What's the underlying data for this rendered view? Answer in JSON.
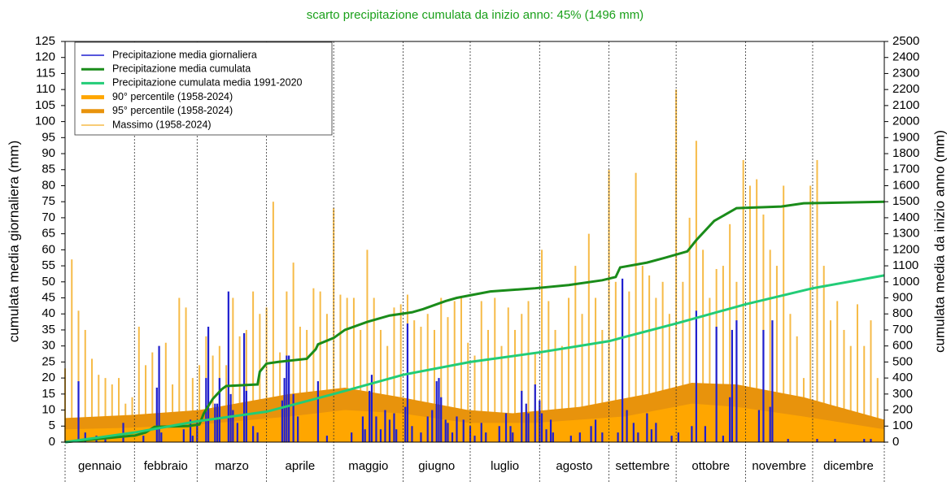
{
  "chart_data": {
    "type": "combo",
    "title": "scarto precipitazione cumulata da inizio anno: 45% (1496 mm)",
    "ylabel": "cumulata media giornaliera (mm)",
    "y2label": "cumulata media da inizio anno (mm)",
    "categories": [
      "gennaio",
      "febbraio",
      "marzo",
      "aprile",
      "maggio",
      "giugno",
      "luglio",
      "agosto",
      "settembre",
      "ottobre",
      "novembre",
      "dicembre"
    ],
    "xlim": [
      0,
      366
    ],
    "xticks": [
      0,
      31,
      59,
      90,
      120,
      151,
      181,
      212,
      243,
      273,
      304,
      334,
      366
    ],
    "ylim": [
      0,
      125
    ],
    "yticks": [
      0,
      5,
      10,
      15,
      20,
      25,
      30,
      35,
      40,
      45,
      50,
      55,
      60,
      65,
      70,
      75,
      80,
      85,
      90,
      95,
      100,
      105,
      110,
      115,
      120,
      125
    ],
    "y2lim": [
      0,
      2500
    ],
    "y2ticks": [
      0,
      100,
      200,
      300,
      400,
      500,
      600,
      700,
      800,
      900,
      1000,
      1100,
      1200,
      1300,
      1400,
      1500,
      1600,
      1700,
      1800,
      1900,
      2000,
      2100,
      2200,
      2300,
      2400,
      2500
    ],
    "legend": "upper left",
    "series": [
      {
        "name": "Precipitazione media giornaliera",
        "type": "bar",
        "color": "#1f1fd0",
        "axis": "y",
        "x": [
          6,
          9,
          14,
          18,
          26,
          35,
          41,
          42,
          43,
          53,
          56,
          57,
          59,
          63,
          64,
          67,
          68,
          69,
          73,
          74,
          75,
          77,
          80,
          81,
          84,
          86,
          97,
          98,
          99,
          100,
          102,
          104,
          113,
          117,
          128,
          133,
          134,
          136,
          137,
          139,
          141,
          143,
          145,
          147,
          148,
          152,
          153,
          155,
          159,
          162,
          164,
          166,
          167,
          168,
          170,
          171,
          173,
          175,
          178,
          181,
          183,
          186,
          188,
          194,
          197,
          199,
          200,
          204,
          206,
          207,
          210,
          212,
          213,
          215,
          217,
          218,
          226,
          230,
          235,
          237,
          240,
          247,
          249,
          251,
          254,
          256,
          260,
          262,
          264,
          271,
          274,
          280,
          282,
          286,
          291,
          294,
          297,
          298,
          300,
          310,
          312,
          315,
          316,
          323,
          336,
          344,
          357,
          360
        ],
        "values": [
          19,
          3,
          2,
          1,
          6,
          2,
          17,
          30,
          3,
          4,
          7,
          2,
          6,
          20,
          36,
          12,
          12,
          20,
          47,
          15,
          10,
          6,
          34,
          16,
          5,
          3,
          13,
          20,
          27,
          27,
          15,
          8,
          19,
          2,
          3,
          8,
          4,
          16,
          21,
          8,
          4,
          10,
          7,
          9,
          4,
          11,
          37,
          5,
          3,
          8,
          10,
          19,
          20,
          14,
          7,
          6,
          3,
          8,
          7,
          5,
          2,
          6,
          3,
          5,
          9,
          5,
          3,
          16,
          12,
          9,
          18,
          13,
          9,
          4,
          7,
          3,
          2,
          3,
          5,
          7,
          3,
          3,
          51,
          10,
          6,
          3,
          9,
          4,
          6,
          2,
          3,
          5,
          41,
          5,
          36,
          2,
          14,
          35,
          38,
          10,
          35,
          11,
          38,
          1,
          1,
          1,
          1,
          1
        ]
      },
      {
        "name": "Precipitazione media cumulata",
        "type": "line",
        "color": "#1a8c1a",
        "axis": "y2",
        "x": [
          0,
          30,
          31,
          36,
          40,
          55,
          60,
          62,
          66,
          70,
          72,
          86,
          87,
          90,
          95,
          108,
          112,
          113,
          120,
          125,
          135,
          145,
          155,
          160,
          170,
          175,
          190,
          210,
          225,
          240,
          246,
          248,
          260,
          268,
          278,
          282,
          290,
          300,
          320,
          330,
          366
        ],
        "values": [
          0,
          40,
          40,
          60,
          95,
          100,
          110,
          180,
          270,
          330,
          350,
          360,
          440,
          490,
          500,
          520,
          580,
          610,
          650,
          700,
          750,
          790,
          810,
          830,
          880,
          900,
          940,
          960,
          980,
          1010,
          1030,
          1090,
          1120,
          1150,
          1190,
          1260,
          1380,
          1460,
          1470,
          1490,
          1500
        ]
      },
      {
        "name": "Precipitazione cumulata media 1991-2020",
        "type": "line",
        "color": "#22cc77",
        "axis": "y2",
        "x": [
          0,
          31,
          59,
          90,
          120,
          151,
          181,
          212,
          243,
          273,
          304,
          334,
          366
        ],
        "values": [
          0,
          60,
          130,
          190,
          300,
          420,
          500,
          560,
          630,
          740,
          860,
          960,
          1040
        ]
      },
      {
        "name": "90° percentile (1958-2024)",
        "type": "area",
        "color": "#ffa600",
        "axis": "y",
        "x": [
          0,
          30,
          60,
          100,
          125,
          150,
          180,
          210,
          250,
          280,
          300,
          330,
          366
        ],
        "values": [
          4,
          4.5,
          5.5,
          8,
          10,
          9,
          6,
          6,
          8,
          12,
          11,
          8,
          4
        ]
      },
      {
        "name": "95° percentile (1958-2024)",
        "type": "area",
        "color": "#e8930c",
        "axis": "y",
        "x": [
          0,
          30,
          60,
          100,
          125,
          150,
          180,
          200,
          230,
          260,
          280,
          300,
          330,
          366
        ],
        "values": [
          7.5,
          8.5,
          10,
          15,
          17,
          14,
          10,
          9,
          11,
          15,
          18.5,
          18,
          14,
          7
        ]
      },
      {
        "name": "Massimo (1958-2024)",
        "type": "bar",
        "color": "#f6bb48",
        "axis": "y",
        "x": [
          0,
          3,
          6,
          9,
          12,
          15,
          18,
          21,
          24,
          27,
          30,
          33,
          36,
          39,
          42,
          45,
          48,
          51,
          54,
          57,
          60,
          63,
          66,
          69,
          72,
          75,
          78,
          81,
          84,
          87,
          90,
          93,
          96,
          99,
          102,
          105,
          108,
          111,
          114,
          117,
          120,
          123,
          126,
          129,
          132,
          135,
          138,
          141,
          144,
          147,
          150,
          153,
          156,
          159,
          162,
          165,
          168,
          171,
          174,
          177,
          180,
          183,
          186,
          189,
          192,
          195,
          198,
          201,
          204,
          207,
          210,
          213,
          216,
          219,
          222,
          225,
          228,
          231,
          234,
          237,
          240,
          243,
          246,
          249,
          252,
          255,
          258,
          261,
          264,
          267,
          270,
          273,
          276,
          279,
          282,
          285,
          288,
          291,
          294,
          297,
          300,
          303,
          306,
          309,
          312,
          315,
          318,
          321,
          324,
          327,
          330,
          333,
          336,
          339,
          342,
          345,
          348,
          351,
          354,
          357,
          360,
          363
        ],
        "values": [
          23,
          57,
          41,
          35,
          26,
          21,
          20,
          18,
          20,
          12,
          14,
          36,
          24,
          28,
          30,
          31,
          18,
          45,
          42,
          20,
          24,
          33,
          27,
          30,
          24,
          45,
          33,
          35,
          47,
          40,
          42,
          75,
          28,
          47,
          56,
          36,
          35,
          48,
          47,
          40,
          73,
          46,
          45,
          45,
          35,
          60,
          45,
          35,
          30,
          42,
          43,
          46,
          38,
          36,
          40,
          35,
          45,
          39,
          44,
          45,
          31,
          27,
          44,
          35,
          45,
          30,
          42,
          35,
          40,
          44,
          28,
          60,
          44,
          35,
          30,
          45,
          55,
          40,
          65,
          45,
          35,
          85,
          50,
          48,
          47,
          84,
          55,
          52,
          45,
          50,
          40,
          110,
          50,
          70,
          94,
          60,
          45,
          54,
          55,
          68,
          50,
          88,
          80,
          82,
          71,
          60,
          55,
          80,
          40,
          33,
          20,
          80,
          88,
          55,
          38,
          44,
          35,
          30,
          43,
          30,
          38,
          20
        ]
      }
    ]
  }
}
